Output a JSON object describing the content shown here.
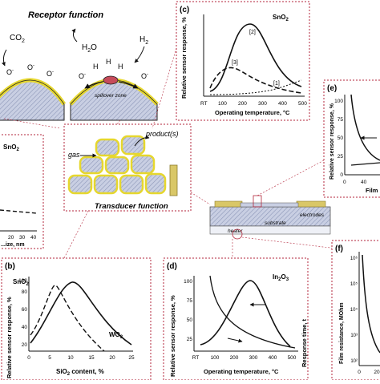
{
  "receptor": {
    "title": "Receptor function",
    "co2": "CO",
    "co2_sub": "2",
    "h2o": "H",
    "h2o_sub": "2",
    "h2o_tail": "O",
    "h2": "H",
    "h2_sub": "2",
    "o_minus": "O",
    "h_atom": "H",
    "spillover": "spillover zone"
  },
  "transducer": {
    "title": "Transducer function",
    "gas": "gas",
    "product": "product(s)"
  },
  "device": {
    "electrodes": "electrodes",
    "substrate": "substrate",
    "heater": "heater"
  },
  "panel_left": {
    "material": "SnO",
    "material_sub": "2",
    "xlabel": "...ize, nm",
    "xticks": [
      "20",
      "30",
      "40"
    ]
  },
  "panel_b": {
    "letter": "(b)",
    "material": "SnO",
    "material_sub": "2",
    "material2": "WO",
    "material2_sub": "3",
    "ylabel": "Relative sensor response, %",
    "xlabel": "SiO",
    "xlabel_sub": "2",
    "xlabel_tail": " content, %",
    "yticks": [
      "20",
      "40",
      "60",
      "80",
      "100"
    ],
    "xticks": [
      "0",
      "5",
      "10",
      "15",
      "20",
      "25"
    ]
  },
  "panel_c": {
    "letter": "(c)",
    "material": "SnO",
    "material_sub": "2",
    "ylabel": "Relative sensor response, %",
    "xlabel": "Operating temperature, °C",
    "xticks": [
      "RT",
      "100",
      "200",
      "300",
      "400",
      "500"
    ],
    "curve_labels": [
      "[2]",
      "[3]",
      "[1]"
    ]
  },
  "panel_d": {
    "letter": "(d)",
    "material": "In",
    "material_sub": "2",
    "material_tail": "O",
    "material_sub2": "3",
    "ylabel": "Relative sensor response, %",
    "ylabel2": "Response time, t",
    "xlabel": "Operating temperature, °C",
    "yticks": [
      "25",
      "50",
      "75",
      "100"
    ],
    "xticks": [
      "RT",
      "100",
      "200",
      "300",
      "400",
      "500"
    ]
  },
  "panel_e": {
    "letter": "(e)",
    "ylabel": "Relative sensor response, %",
    "xlabel": "Film",
    "yticks": [
      "0",
      "25",
      "50",
      "75",
      "100"
    ],
    "xticks": [
      "0",
      "40"
    ]
  },
  "panel_f": {
    "letter": "(f)",
    "ylabel": "Film resistance, MOhm",
    "yticks": [
      "10²",
      "10³",
      "10⁴",
      "10⁵",
      "10⁶"
    ],
    "xticks": [
      "0",
      "20"
    ]
  },
  "colors": {
    "frame": "#b3263b",
    "grain_fill": "#cfd4e6",
    "grain_edge": "#e9e64a",
    "substrate": "#9aa3b6",
    "electrode": "#d9c767"
  }
}
